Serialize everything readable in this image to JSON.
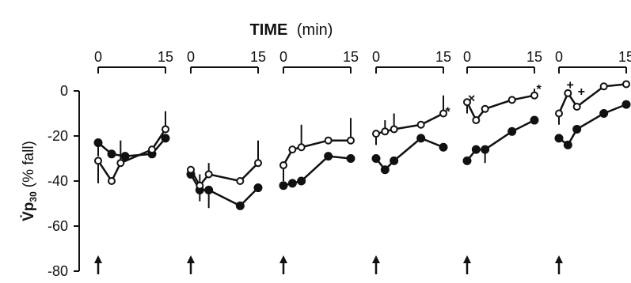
{
  "chart_data": {
    "type": "line",
    "title": {
      "bold": "TIME",
      "rest": "(min)"
    },
    "ylabel": {
      "main": "V̇p",
      "sub": "30",
      "rest": "(% fall)"
    },
    "yticks": [
      0,
      -20,
      -40,
      -60,
      -80
    ],
    "ylim": [
      -80,
      0
    ],
    "xlim": [
      0,
      15
    ],
    "xtick_labels": [
      "0",
      "15"
    ],
    "grid": false,
    "legend": "none",
    "panels": [
      {
        "filled": {
          "x": [
            0,
            3,
            6,
            12,
            15
          ],
          "y": [
            -23,
            -28,
            -29,
            -28,
            -21
          ],
          "err": [
            6,
            0,
            0,
            0,
            0
          ]
        },
        "open": {
          "x": [
            0,
            3,
            5,
            12,
            15
          ],
          "y": [
            -31,
            -40,
            -32,
            -26,
            -17
          ],
          "err": [
            10,
            0,
            10,
            0,
            8
          ]
        },
        "annotations": []
      },
      {
        "filled": {
          "x": [
            0,
            2,
            4,
            11,
            15
          ],
          "y": [
            -37,
            -44,
            -44,
            -51,
            -43
          ],
          "err": [
            0,
            5,
            8,
            0,
            0
          ]
        },
        "open": {
          "x": [
            0,
            2,
            4,
            11,
            15
          ],
          "y": [
            -35,
            -42,
            -37,
            -40,
            -32
          ],
          "err": [
            0,
            5,
            5,
            0,
            10
          ]
        },
        "annotations": []
      },
      {
        "filled": {
          "x": [
            0,
            2,
            4,
            10,
            15
          ],
          "y": [
            -42,
            -41,
            -40,
            -29,
            -30
          ],
          "err": [
            0,
            0,
            0,
            0,
            0
          ]
        },
        "open": {
          "x": [
            0,
            2,
            4,
            10,
            15
          ],
          "y": [
            -33,
            -26,
            -25,
            -22,
            -22
          ],
          "err": [
            7,
            0,
            10,
            0,
            10
          ]
        },
        "annotations": []
      },
      {
        "filled": {
          "x": [
            0,
            2,
            4,
            10,
            15
          ],
          "y": [
            -30,
            -35,
            -31,
            -21,
            -25
          ],
          "err": [
            0,
            0,
            0,
            0,
            0
          ]
        },
        "open": {
          "x": [
            0,
            2,
            4,
            10,
            15
          ],
          "y": [
            -19,
            -18,
            -17,
            -15,
            -10
          ],
          "err": [
            5,
            5,
            7,
            0,
            8
          ]
        },
        "annotations": [
          {
            "text": "*",
            "x": 16,
            "y": -9
          }
        ]
      },
      {
        "filled": {
          "x": [
            0,
            2,
            4,
            10,
            15
          ],
          "y": [
            -31,
            -26,
            -26,
            -18,
            -13
          ],
          "err": [
            0,
            0,
            6,
            0,
            0
          ]
        },
        "open": {
          "x": [
            0,
            2,
            4,
            10,
            15
          ],
          "y": [
            -5,
            -13,
            -8,
            -4,
            -2
          ],
          "err": [
            5,
            0,
            0,
            0,
            3
          ]
        },
        "annotations": [
          {
            "text": "×",
            "x": 1,
            "y": -3
          },
          {
            "text": "*",
            "x": 16,
            "y": 1
          }
        ]
      },
      {
        "filled": {
          "x": [
            0,
            2,
            4,
            10,
            15
          ],
          "y": [
            -21,
            -24,
            -17,
            -10,
            -6
          ],
          "err": [
            0,
            0,
            0,
            0,
            0
          ]
        },
        "open": {
          "x": [
            0,
            2,
            4,
            10,
            15
          ],
          "y": [
            -10,
            -1,
            -7,
            2,
            3
          ],
          "err": [
            5,
            0,
            0,
            0,
            0
          ]
        },
        "annotations": [
          {
            "text": "+",
            "x": 2.5,
            "y": 3
          },
          {
            "text": "+",
            "x": 5,
            "y": 0
          }
        ]
      }
    ]
  }
}
